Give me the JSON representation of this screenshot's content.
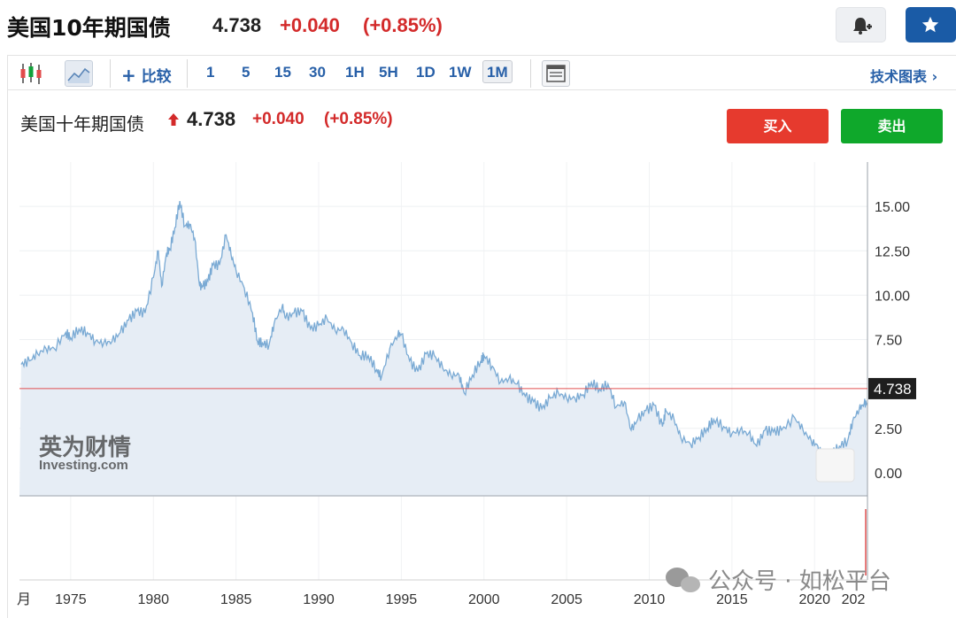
{
  "header": {
    "title": "美国10年期国债",
    "price": "4.738",
    "change": "+0.040",
    "change_pct": "(+0.85%)",
    "alert_button": "bell-plus-icon",
    "watchlist_button": "star-icon"
  },
  "toolbar": {
    "chart_types": [
      "candlestick-icon",
      "area-chart-icon"
    ],
    "compare_label": "比较",
    "intervals": [
      "1",
      "5",
      "15",
      "30",
      "1H",
      "5H",
      "1D",
      "1W",
      "1M"
    ],
    "active_interval": "1M",
    "layout_icon": "layout-icon",
    "technical_label": "技术图表 ›"
  },
  "instrument": {
    "name": "美国十年期国债",
    "price": "4.738",
    "change": "+0.040",
    "change_pct": "(+0.85%)",
    "buy_label": "买入",
    "sell_label": "卖出"
  },
  "watermark": {
    "brand_cn": "英为财情",
    "brand_en": "Investing.com",
    "wechat": "公众号 · 如松平台"
  },
  "colors": {
    "accent": "#2860a8",
    "positive": "#d32a2a",
    "buy": "#e63a2e",
    "sell": "#0fa82b",
    "line": "#7aaad4",
    "area": "#e6edf5",
    "current_line": "#e05050"
  },
  "chart_data": {
    "type": "area",
    "title": "",
    "xlabel": "",
    "ylabel": "",
    "x_ticks": [
      "月",
      "1975",
      "1980",
      "1985",
      "1990",
      "1995",
      "2000",
      "2005",
      "2010",
      "2015",
      "2020",
      "202"
    ],
    "y_ticks": [
      "0.00",
      "2.50",
      "5.00",
      "7.50",
      "10.00",
      "12.50",
      "15.00"
    ],
    "ylim": [
      -1.3,
      17.5
    ],
    "xlim": [
      1971.9,
      2023.2
    ],
    "grid": true,
    "current_value": "4.738",
    "series": [
      {
        "name": "",
        "x": [
          1972.0,
          1972.5,
          1973.0,
          1973.5,
          1974.0,
          1974.7,
          1975.0,
          1975.5,
          1976.0,
          1976.5,
          1977.0,
          1977.5,
          1978.0,
          1978.5,
          1979.0,
          1979.5,
          1980.0,
          1980.3,
          1980.5,
          1980.8,
          1981.0,
          1981.3,
          1981.6,
          1981.9,
          1982.2,
          1982.5,
          1982.8,
          1983.0,
          1983.3,
          1983.6,
          1984.0,
          1984.4,
          1984.7,
          1985.0,
          1985.5,
          1986.0,
          1986.3,
          1986.6,
          1987.0,
          1987.3,
          1987.8,
          1988.0,
          1988.5,
          1989.0,
          1989.5,
          1990.0,
          1990.5,
          1991.0,
          1991.5,
          1992.0,
          1992.5,
          1993.0,
          1993.5,
          1993.8,
          1994.3,
          1994.8,
          1995.0,
          1995.5,
          1996.0,
          1996.5,
          1997.0,
          1997.5,
          1998.0,
          1998.5,
          1998.8,
          1999.3,
          1999.8,
          2000.0,
          2000.5,
          2001.0,
          2001.5,
          2002.0,
          2002.5,
          2003.0,
          2003.5,
          2004.0,
          2004.5,
          2005.0,
          2005.5,
          2006.0,
          2006.5,
          2007.0,
          2007.5,
          2008.0,
          2008.5,
          2008.9,
          2009.3,
          2009.8,
          2010.3,
          2010.8,
          2011.0,
          2011.5,
          2011.9,
          2012.5,
          2013.0,
          2013.5,
          2013.9,
          2014.5,
          2015.0,
          2015.5,
          2016.0,
          2016.5,
          2017.0,
          2017.5,
          2018.0,
          2018.8,
          2019.3,
          2019.8,
          2020.2,
          2020.6,
          2021.0,
          2021.5,
          2022.0,
          2022.3,
          2022.7,
          2023.0
        ],
        "y": [
          6.1,
          6.3,
          6.7,
          7.0,
          7.0,
          7.9,
          7.6,
          8.1,
          7.9,
          7.4,
          7.3,
          7.4,
          7.9,
          8.6,
          9.1,
          9.0,
          11.0,
          12.5,
          10.5,
          12.4,
          12.6,
          13.8,
          15.3,
          13.9,
          14.0,
          13.2,
          10.5,
          10.5,
          10.8,
          11.7,
          11.7,
          13.4,
          12.3,
          11.4,
          10.4,
          9.0,
          7.4,
          7.3,
          7.2,
          8.4,
          9.4,
          8.7,
          9.0,
          9.1,
          8.1,
          8.3,
          8.7,
          8.0,
          8.1,
          7.3,
          6.6,
          6.6,
          5.8,
          5.4,
          7.0,
          7.8,
          7.8,
          6.3,
          5.7,
          6.7,
          6.6,
          5.9,
          5.5,
          5.5,
          4.5,
          5.5,
          6.3,
          6.6,
          6.0,
          5.1,
          5.3,
          5.0,
          4.3,
          4.0,
          3.6,
          4.2,
          4.5,
          4.2,
          4.2,
          4.4,
          5.1,
          4.7,
          5.0,
          3.7,
          4.0,
          2.4,
          3.0,
          3.5,
          3.8,
          2.6,
          3.5,
          3.0,
          2.0,
          1.6,
          2.0,
          2.5,
          3.0,
          2.6,
          2.2,
          2.4,
          2.2,
          1.5,
          2.4,
          2.3,
          2.4,
          3.1,
          2.4,
          1.8,
          1.5,
          0.6,
          1.0,
          1.5,
          1.8,
          2.9,
          3.6,
          3.9
        ],
        "tail_x": [
          2023.2,
          2023.5,
          2023.8,
          2024.0,
          2024.3,
          2024.6,
          2024.9,
          2025.1
        ],
        "tail_y": [
          3.9,
          4.2,
          4.9,
          4.0,
          4.5,
          4.3,
          4.4,
          4.7
        ]
      }
    ]
  }
}
